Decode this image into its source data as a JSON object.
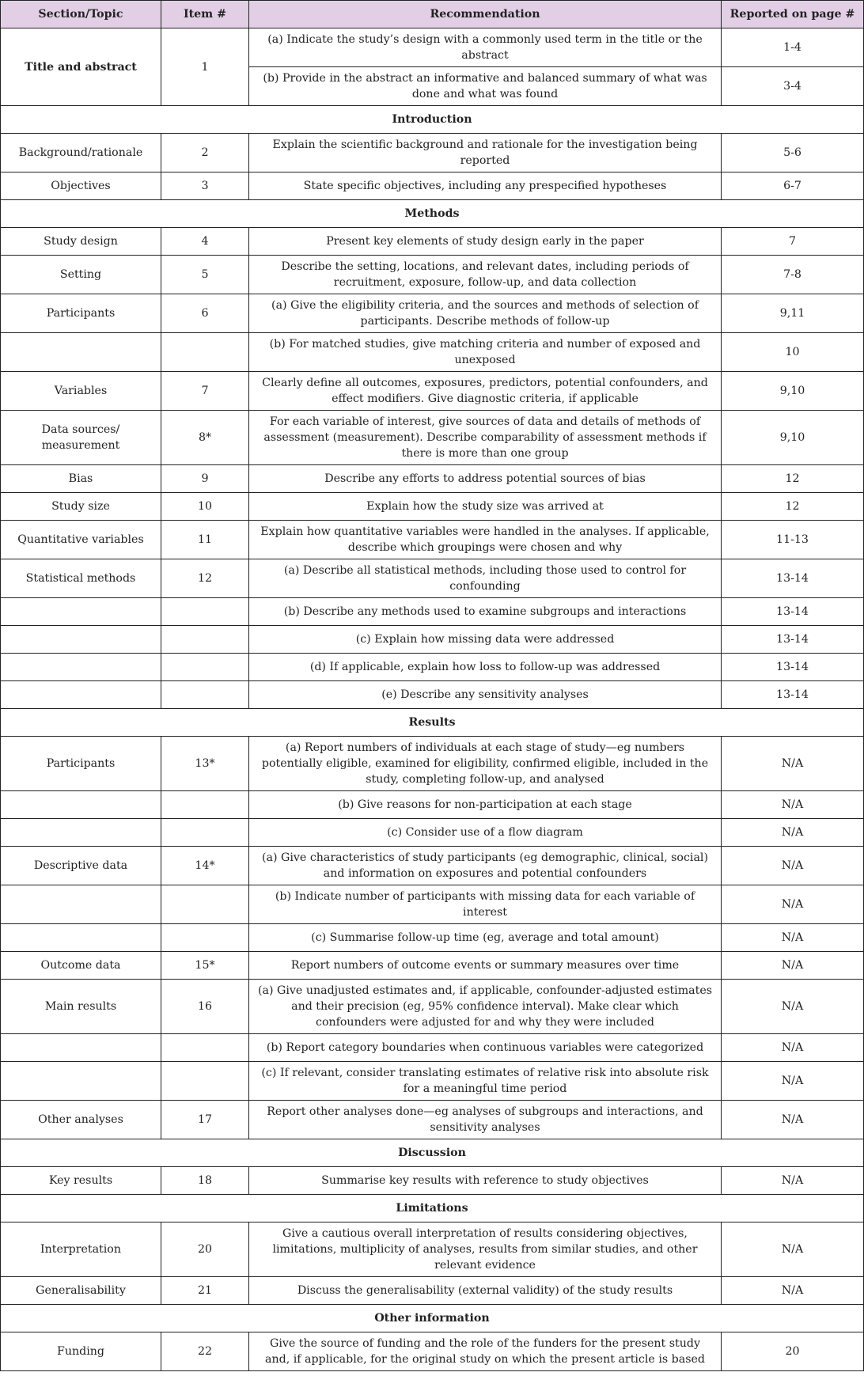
{
  "headers": [
    "Section/Topic",
    "Item #",
    "Recommendation",
    "Reported on page #"
  ],
  "rows": [
    {
      "topic": "Title and abstract",
      "item": "1",
      "rec": "(a) Indicate the study’s design with a commonly used term in the title or the abstract",
      "page": "1-4",
      "rowspan": 2,
      "bold": true
    },
    {
      "rec": "(b) Provide in the abstract an informative and balanced summary of what was done and what was found",
      "page": "3-4",
      "cont": true
    },
    {
      "section": "Introduction"
    },
    {
      "topic": "Background/rationale",
      "item": "2",
      "rec": "Explain the scientific background and rationale for the investigation being reported",
      "page": "5-6"
    },
    {
      "topic": "Objectives",
      "item": "3",
      "rec": "State specific objectives, including any prespecified hypotheses",
      "page": "6-7"
    },
    {
      "section": "Methods"
    },
    {
      "topic": "Study design",
      "item": "4",
      "rec": "Present key elements of study design early in the paper",
      "page": "7"
    },
    {
      "topic": "Setting",
      "item": "5",
      "rec": "Describe the setting, locations, and relevant dates, including periods of recruitment, exposure, follow-up, and data collection",
      "page": "7-8"
    },
    {
      "topic": "Participants",
      "item": "6",
      "rec": "(a) Give the eligibility criteria, and the sources and methods of selection of participants. Describe methods of follow-up",
      "page": "9,11"
    },
    {
      "topic": "",
      "item": "",
      "rec": "(b) For matched studies, give matching criteria and number of exposed and unexposed",
      "page": "10"
    },
    {
      "topic": "Variables",
      "item": "7",
      "rec": "Clearly define all outcomes, exposures, predictors, potential confounders, and effect modifiers. Give diagnostic criteria, if applicable",
      "page": "9,10"
    },
    {
      "topic": "Data sources/ measurement",
      "item": "8*",
      "rec": "For each variable of interest, give sources of data and details of methods of assessment (measurement). Describe comparability of assessment methods if there is more than one group",
      "page": "9,10"
    },
    {
      "topic": "Bias",
      "item": "9",
      "rec": "Describe any efforts to address potential sources of bias",
      "page": "12"
    },
    {
      "topic": "Study size",
      "item": "10",
      "rec": "Explain how the study size was arrived at",
      "page": "12"
    },
    {
      "topic": "Quantitative variables",
      "item": "11",
      "rec": "Explain how quantitative variables were handled in the analyses. If applicable, describe which groupings were chosen and why",
      "page": "11-13"
    },
    {
      "topic": "Statistical methods",
      "item": "12",
      "rec": "(a) Describe all statistical methods, including those used to control for confounding",
      "page": "13-14"
    },
    {
      "topic": "",
      "item": "",
      "rec": "(b) Describe any methods used to examine subgroups and interactions",
      "page": "13-14"
    },
    {
      "topic": "",
      "item": "",
      "rec": "(c) Explain how missing data were addressed",
      "page": "13-14"
    },
    {
      "topic": "",
      "item": "",
      "rec": "(d) If applicable, explain how loss to follow-up was addressed",
      "page": "13-14"
    },
    {
      "topic": "",
      "item": "",
      "rec": "(e) Describe any sensitivity analyses",
      "page": "13-14"
    },
    {
      "section": "Results"
    },
    {
      "topic": "Participants",
      "item": "13*",
      "rec": "(a) Report numbers of individuals at each stage of study—eg numbers potentially eligible, examined for eligibility, confirmed eligible, included in the study, completing follow-up, and analysed",
      "page": "N/A"
    },
    {
      "topic": "",
      "item": "",
      "rec": "(b) Give reasons for non-participation at each stage",
      "page": "N/A"
    },
    {
      "topic": "",
      "item": "",
      "rec": "(c) Consider use of a flow diagram",
      "page": "N/A"
    },
    {
      "topic": "Descriptive data",
      "item": "14*",
      "rec": "(a) Give characteristics of study participants (eg demographic, clinical, social) and information on exposures and potential confounders",
      "page": "N/A"
    },
    {
      "topic": "",
      "item": "",
      "rec": "(b) Indicate number of participants with missing data for each variable of interest",
      "page": "N/A"
    },
    {
      "topic": "",
      "item": "",
      "rec": "(c) Summarise follow-up time (eg, average and total amount)",
      "page": "N/A"
    },
    {
      "topic": "Outcome data",
      "item": "15*",
      "rec": "Report numbers of outcome events or summary measures over time",
      "page": "N/A"
    },
    {
      "topic": "Main results",
      "item": "16",
      "rec": "(a) Give unadjusted estimates and, if applicable, confounder-adjusted estimates and their precision (eg, 95% confidence interval). Make clear which confounders were adjusted for and why they were included",
      "page": "N/A"
    },
    {
      "topic": "",
      "item": "",
      "rec": "(b) Report category boundaries when continuous variables were categorized",
      "page": "N/A"
    },
    {
      "topic": "",
      "item": "",
      "rec": "(c) If relevant, consider translating estimates of relative risk into absolute risk for a meaningful time period",
      "page": "N/A"
    },
    {
      "topic": "Other analyses",
      "item": "17",
      "rec": "Report other analyses done—eg analyses of subgroups and interactions, and sensitivity analyses",
      "page": "N/A"
    },
    {
      "section": "Discussion"
    },
    {
      "topic": "Key results",
      "item": "18",
      "rec": "Summarise key results with reference to study objectives",
      "page": "N/A"
    },
    {
      "section": "Limitations"
    },
    {
      "topic": "Interpretation",
      "item": "20",
      "rec": "Give a cautious overall interpretation of results considering objectives, limitations, multiplicity of analyses, results from similar studies, and other relevant evidence",
      "page": "N/A"
    },
    {
      "topic": "Generalisability",
      "item": "21",
      "rec": "Discuss the generalisability (external validity) of the study results",
      "page": "N/A"
    },
    {
      "section": "Other information"
    },
    {
      "topic": "Funding",
      "item": "22",
      "rec": "Give the source of funding and the role of the funders for the present study and, if applicable, for the original study on which the present article is based",
      "page": "20"
    }
  ]
}
